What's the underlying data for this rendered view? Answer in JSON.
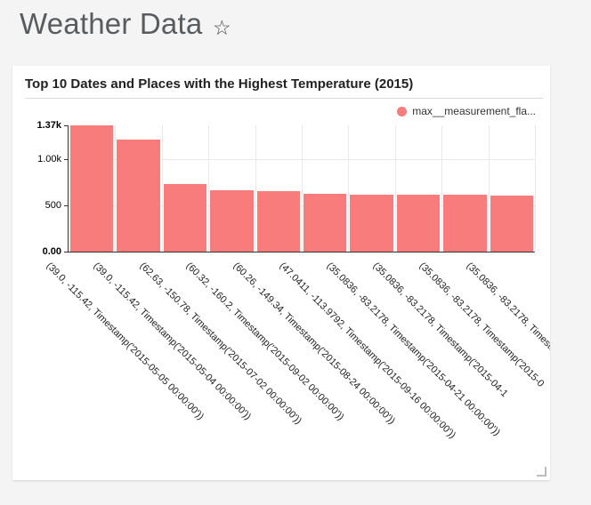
{
  "header": {
    "title": "Weather Data",
    "star_icon_glyph": "☆"
  },
  "card": {
    "title": "Top 10 Dates and Places with the Highest Temperature (2015)",
    "legend": {
      "label": "max__measurement_fla...",
      "color": "#f87c7b"
    }
  },
  "chart_data": {
    "type": "bar",
    "title": "Top 10 Dates and Places with the Highest Temperature (2015)",
    "legend_entries": [
      "max__measurement_fla..."
    ],
    "legend_position": "top-right",
    "bar_color": "#f87c7b",
    "grid": true,
    "x_label_rotation_deg": 45,
    "categories": [
      "(39.0, -115.42, Timestamp('2015-05-05 00:00:00'))",
      "(39.0, -115.42, Timestamp('2015-05-04 00:00:00'))",
      "(62.63, -150.78, Timestamp('2015-07-02 00:00:00'))",
      "(60.32, -160.2, Timestamp('2015-09-02 00:00:00'))",
      "(60.26, -149.34, Timestamp('2015-08-24 00:00:00'))",
      "(47.0411, -113.9792, Timestamp('2015-09-16 00:00:00'))",
      "(35.0836, -83.2178, Timestamp('2015-04-21 00:00:00'))",
      "(35.0836, -83.2178, Timestamp('2015-04-1",
      "(35.0836, -83.2178, Timestamp('2015-0",
      "(35.0836, -83.2178, Timesta"
    ],
    "values": [
      1370,
      1215,
      733,
      665,
      655,
      627,
      613,
      613,
      613,
      610
    ],
    "xlabel": "",
    "ylabel": "",
    "ylim": [
      0,
      1370
    ],
    "yticks": [
      {
        "label": "0.00",
        "value": 0,
        "bold": true
      },
      {
        "label": "500",
        "value": 500,
        "bold": false
      },
      {
        "label": "1.00k",
        "value": 1000,
        "bold": false
      },
      {
        "label": "1.37k",
        "value": 1370,
        "bold": true
      }
    ]
  }
}
